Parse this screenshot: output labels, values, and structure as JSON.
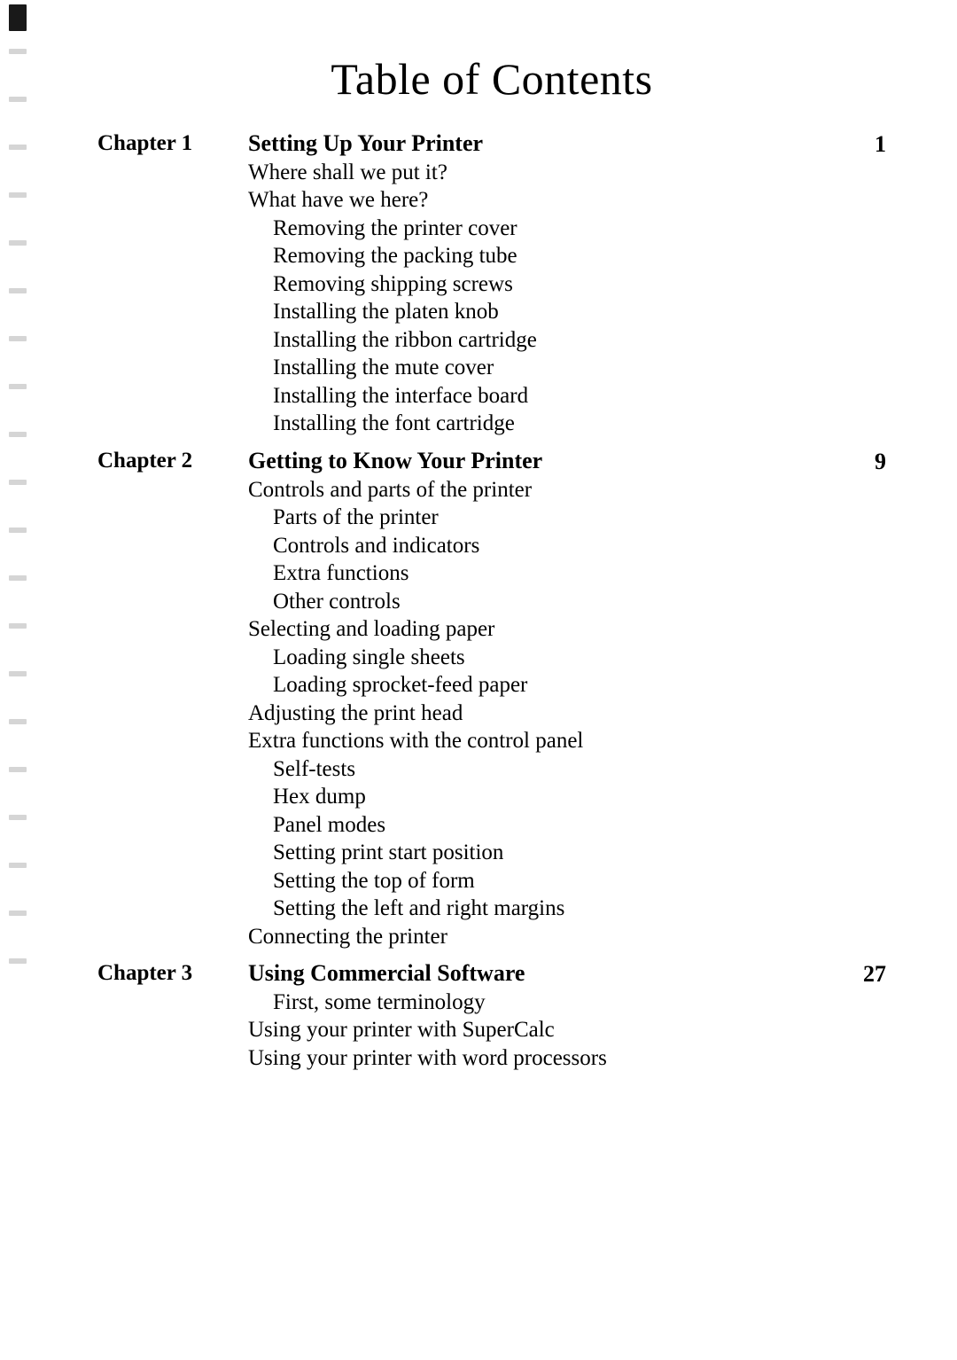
{
  "title": "Table of Contents",
  "chapters": [
    {
      "label": "Chapter 1",
      "title": "Setting Up Your Printer",
      "page": "1",
      "entries": [
        {
          "text": "Where shall we put it?",
          "level": 1
        },
        {
          "text": "What have we here?",
          "level": 1
        },
        {
          "text": "Removing the printer cover",
          "level": 2
        },
        {
          "text": "Removing the packing tube",
          "level": 2
        },
        {
          "text": "Removing shipping screws",
          "level": 2
        },
        {
          "text": "Installing the platen knob",
          "level": 2
        },
        {
          "text": "Installing the ribbon cartridge",
          "level": 2
        },
        {
          "text": "Installing the mute cover",
          "level": 2
        },
        {
          "text": "Installing the interface board",
          "level": 2
        },
        {
          "text": "Installing the font cartridge",
          "level": 2
        }
      ]
    },
    {
      "label": "Chapter 2",
      "title": "Getting to Know Your Printer",
      "page": "9",
      "entries": [
        {
          "text": "Controls and parts of the printer",
          "level": 1
        },
        {
          "text": "Parts of the printer",
          "level": 2
        },
        {
          "text": "Controls and indicators",
          "level": 2
        },
        {
          "text": "Extra functions",
          "level": 2
        },
        {
          "text": "Other controls",
          "level": 2
        },
        {
          "text": "Selecting and loading paper",
          "level": 1
        },
        {
          "text": "Loading single sheets",
          "level": 2
        },
        {
          "text": "Loading sprocket-feed paper",
          "level": 2
        },
        {
          "text": "Adjusting the print head",
          "level": 1
        },
        {
          "text": "Extra functions with the control panel",
          "level": 1
        },
        {
          "text": "Self-tests",
          "level": 2
        },
        {
          "text": "Hex dump",
          "level": 2
        },
        {
          "text": "Panel modes",
          "level": 2
        },
        {
          "text": "Setting print start position",
          "level": 2
        },
        {
          "text": "Setting the top of form",
          "level": 2
        },
        {
          "text": "Setting the left and right margins",
          "level": 2
        },
        {
          "text": "Connecting the printer",
          "level": 1
        }
      ]
    },
    {
      "label": "Chapter 3",
      "title": "Using Commercial Software",
      "page": "27",
      "entries": [
        {
          "text": "First, some terminology",
          "level": 2
        },
        {
          "text": "Using your printer with SuperCalc",
          "level": 1
        },
        {
          "text": "Using your printer with word processors",
          "level": 1
        }
      ]
    }
  ]
}
